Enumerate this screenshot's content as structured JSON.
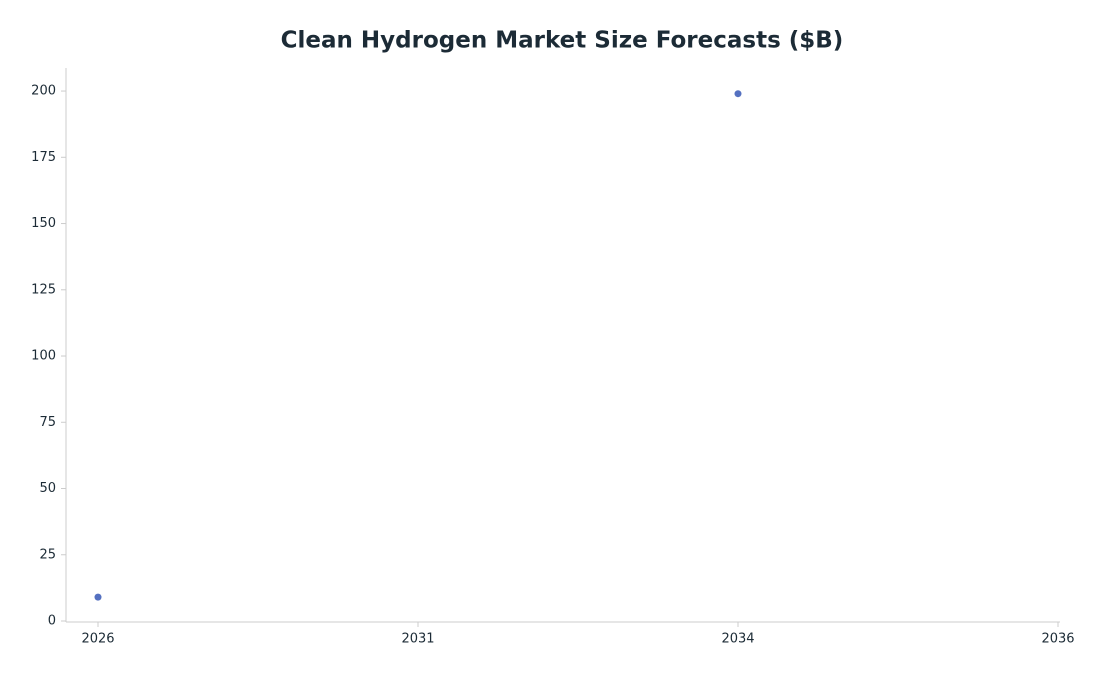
{
  "chart_data": {
    "type": "scatter",
    "title": "Clean Hydrogen Market Size Forecasts ($B)",
    "categories": [
      "2026",
      "2031",
      "2034",
      "2036"
    ],
    "values": [
      9,
      null,
      199,
      null
    ],
    "color": "#5470c0",
    "ylim": [
      0,
      208.7
    ],
    "yticks": [
      0,
      25,
      50,
      75,
      100,
      125,
      150,
      175,
      200
    ],
    "grid": false
  }
}
